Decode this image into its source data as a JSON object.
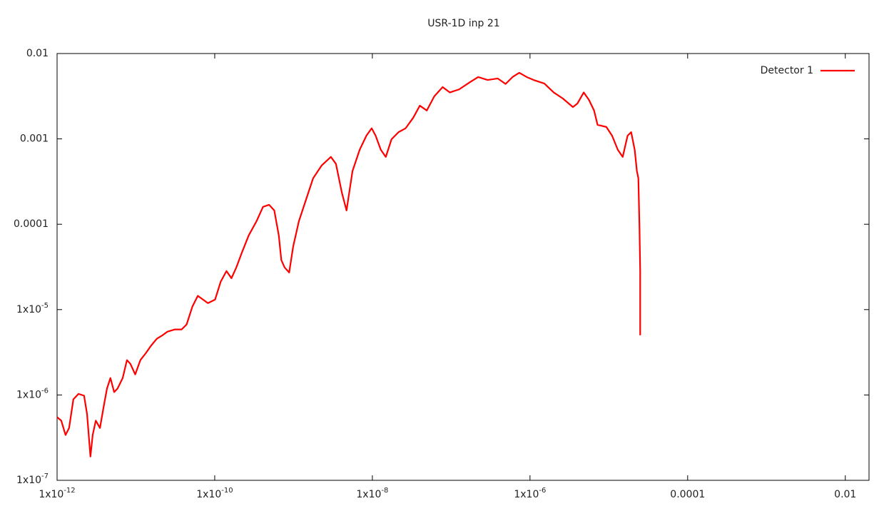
{
  "chart_data": {
    "type": "line",
    "title": "USR-1D inp 21",
    "log_x": true,
    "log_y": true,
    "xlim": [
      1e-12,
      0.02
    ],
    "ylim": [
      1e-07,
      0.01
    ],
    "xticks": [
      {
        "value": 1e-12,
        "label": "1x10-12"
      },
      {
        "value": 1e-10,
        "label": "1x10-10"
      },
      {
        "value": 1e-08,
        "label": "1x10-8"
      },
      {
        "value": 1e-06,
        "label": "1x10-6"
      },
      0.0001,
      0.01
    ],
    "yticks": [
      {
        "value": 1e-07,
        "label": "1x10-7"
      },
      {
        "value": 1e-06,
        "label": "1x10-6"
      },
      {
        "value": 1e-05,
        "label": "1x10-5"
      },
      0.0001,
      0.001,
      0.01
    ],
    "legend": "top-right",
    "x": [
      1e-12,
      1.13e-12,
      1.28e-12,
      1.42e-12,
      1.61e-12,
      1.87e-12,
      2.2e-12,
      2.4e-12,
      2.65e-12,
      2.83e-12,
      3.1e-12,
      3.5e-12,
      3.9e-12,
      4.3e-12,
      4.75e-12,
      5.3e-12,
      5.85e-12,
      6.8e-12,
      7.7e-12,
      8.5e-12,
      9.8e-12,
      1.14e-11,
      1.34e-11,
      1.55e-11,
      1.84e-11,
      2.17e-11,
      2.5e-11,
      3.1e-11,
      3.8e-11,
      4.4e-11,
      5.2e-11,
      6.1e-11,
      7.1e-11,
      8.2e-11,
      1.01e-10,
      1.19e-10,
      1.41e-10,
      1.63e-10,
      1.88e-10,
      2.2e-10,
      2.7e-10,
      3.4e-10,
      4.1e-10,
      4.9e-10,
      5.7e-10,
      6.5e-10,
      7e-10,
      7.7e-10,
      8.8e-10,
      9.9e-10,
      1.17e-09,
      1.44e-09,
      1.77e-09,
      2.28e-09,
      2.98e-09,
      3.45e-09,
      4.1e-09,
      4.7e-09,
      5.6e-09,
      6.9e-09,
      8.4e-09,
      9.8e-09,
      1.1e-08,
      1.28e-08,
      1.48e-08,
      1.75e-08,
      2.15e-08,
      2.64e-08,
      3.3e-08,
      4e-08,
      4.9e-08,
      6.1e-08,
      7.8e-08,
      9.6e-08,
      1.26e-07,
      1.72e-07,
      2.2e-07,
      2.9e-07,
      3.9e-07,
      4.9e-07,
      6e-07,
      7.3e-07,
      9.1e-07,
      1.11e-06,
      1.52e-06,
      2e-06,
      2.6e-06,
      3.5e-06,
      4e-06,
      4.8e-06,
      5.6e-06,
      6.5e-06,
      7.2e-06,
      9.3e-06,
      1.1e-05,
      1.3e-05,
      1.5e-05,
      1.73e-05,
      1.92e-05,
      2.13e-05,
      2.27e-05,
      2.37e-05,
      2.45e-05,
      2.5e-05,
      2.5e-05
    ],
    "series": [
      {
        "name": "Detector 1",
        "color": "#ff0000",
        "values": [
          5.5e-07,
          5e-07,
          3.4e-07,
          4.1e-07,
          8.9e-07,
          1.03e-06,
          9.8e-07,
          6e-07,
          1.9e-07,
          3.4e-07,
          5e-07,
          4.1e-07,
          7.3e-07,
          1.19e-06,
          1.58e-06,
          1.08e-06,
          1.19e-06,
          1.58e-06,
          2.56e-06,
          2.32e-06,
          1.74e-06,
          2.56e-06,
          3.1e-06,
          3.76e-06,
          4.55e-06,
          5e-06,
          5.5e-06,
          5.85e-06,
          5.85e-06,
          6.7e-06,
          1.08e-05,
          1.45e-05,
          1.31e-05,
          1.19e-05,
          1.31e-05,
          2.12e-05,
          2.83e-05,
          2.33e-05,
          3.12e-05,
          4.6e-05,
          7.4e-05,
          0.000109,
          0.00016,
          0.000169,
          0.000145,
          7.4e-05,
          3.8e-05,
          3.12e-05,
          2.72e-05,
          5.5e-05,
          0.000109,
          0.000194,
          0.000345,
          0.00049,
          0.000615,
          0.00051,
          0.000235,
          0.000145,
          0.00042,
          0.000745,
          0.00109,
          0.00133,
          0.00109,
          0.000745,
          0.000615,
          0.00099,
          0.0012,
          0.00133,
          0.00177,
          0.00245,
          0.00215,
          0.00315,
          0.00405,
          0.0035,
          0.0038,
          0.0046,
          0.0053,
          0.0049,
          0.0051,
          0.0044,
          0.0053,
          0.00595,
          0.0053,
          0.0049,
          0.00445,
          0.0035,
          0.00298,
          0.00236,
          0.0026,
          0.0035,
          0.00286,
          0.00215,
          0.00146,
          0.00138,
          0.00109,
          0.000745,
          0.000615,
          0.00109,
          0.0012,
          0.000745,
          0.00042,
          0.000345,
          9e-05,
          2.83e-05,
          5e-06
        ]
      }
    ]
  }
}
